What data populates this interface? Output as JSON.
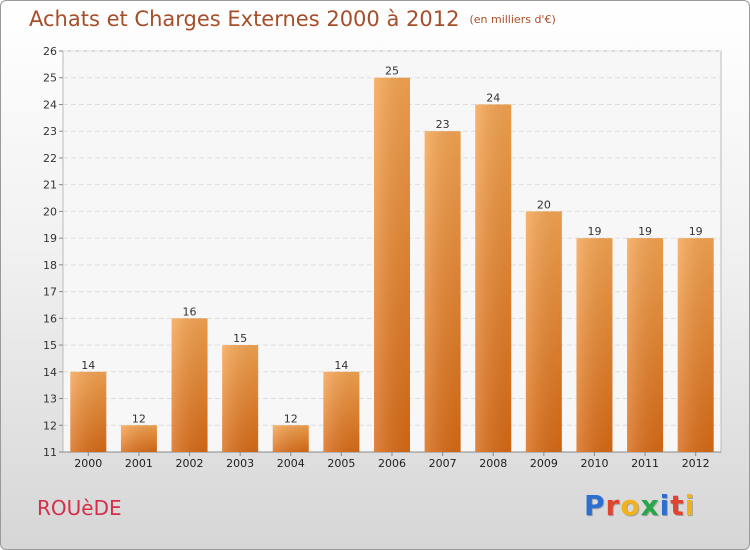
{
  "chart_data": {
    "type": "bar",
    "title": "Achats et Charges Externes 2000 à 2012",
    "subtitle": "(en milliers d'€)",
    "xlabel": "",
    "ylabel": "",
    "categories": [
      "2000",
      "2001",
      "2002",
      "2003",
      "2004",
      "2005",
      "2006",
      "2007",
      "2008",
      "2009",
      "2010",
      "2011",
      "2012"
    ],
    "values": [
      14,
      12,
      16,
      15,
      12,
      14,
      25,
      23,
      24,
      20,
      19,
      19,
      19
    ],
    "ylim": [
      11,
      26
    ],
    "yticks": [
      11,
      12,
      13,
      14,
      15,
      16,
      17,
      18,
      19,
      20,
      21,
      22,
      23,
      24,
      25,
      26
    ],
    "grid": true,
    "bar_color": "#f08a2c"
  },
  "footer": {
    "commune": "ROUèDE",
    "logo_letters": [
      "P",
      "r",
      "o",
      "x",
      "i",
      "t",
      "i"
    ],
    "logo_colors": [
      "#2d6fd1",
      "#e0432e",
      "#f2b21e",
      "#2aa64a",
      "#2d6fd1",
      "#e0432e",
      "#f2b21e"
    ]
  }
}
